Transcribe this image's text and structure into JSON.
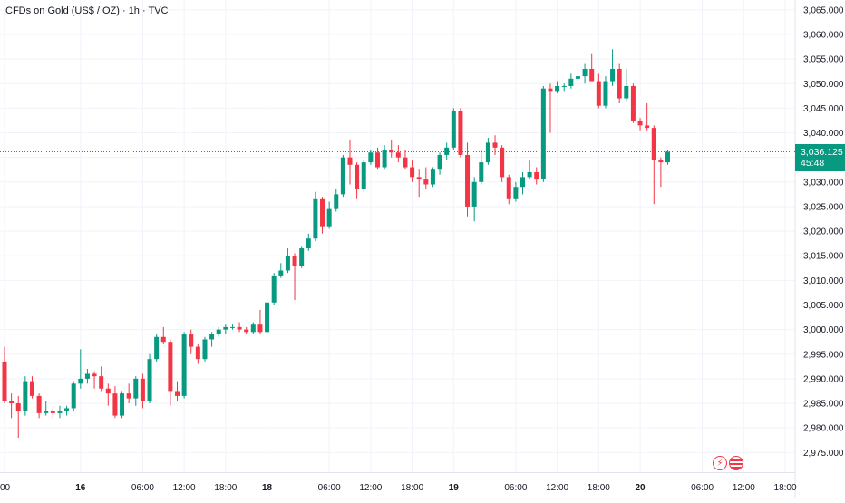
{
  "title": "CFDs on Gold (US$ / OZ) · 1h · TVC",
  "price_tag": {
    "price": "3,036.125",
    "countdown": "45:48"
  },
  "colors": {
    "up": "#089981",
    "down": "#f23645",
    "grid": "#f0f3fa",
    "axis_text": "#131722",
    "last_line": "#089981"
  },
  "events": {
    "bolt_icon": "lightning-icon",
    "flag_icon": "us-flag-icon"
  },
  "chart_data": {
    "type": "candlestick",
    "title": "CFDs on Gold (US$ / OZ) · 1h · TVC",
    "ylim": [
      2971,
      3067
    ],
    "y_axis_position": "right",
    "y_ticks": [
      "3,065.000",
      "3,060.000",
      "3,055.000",
      "3,050.000",
      "3,045.000",
      "3,040.000",
      "3,035.000",
      "3,030.000",
      "3,025.000",
      "3,020.000",
      "3,015.000",
      "3,010.000",
      "3,005.000",
      "3,000.000",
      "2,995.000",
      "2,990.000",
      "2,985.000",
      "2,980.000",
      "2,975.000"
    ],
    "y_tick_values": [
      3065,
      3060,
      3055,
      3050,
      3045,
      3040,
      3035,
      3030,
      3025,
      3020,
      3015,
      3010,
      3005,
      3000,
      2995,
      2990,
      2985,
      2980,
      2975
    ],
    "x_ticks": [
      {
        "label": "00",
        "index": 0,
        "bold": false
      },
      {
        "label": "16",
        "index": 11,
        "bold": true
      },
      {
        "label": "06:00",
        "index": 20,
        "bold": false
      },
      {
        "label": "12:00",
        "index": 26,
        "bold": false
      },
      {
        "label": "18:00",
        "index": 32,
        "bold": false
      },
      {
        "label": "18",
        "index": 38,
        "bold": true
      },
      {
        "label": "06:00",
        "index": 47,
        "bold": false
      },
      {
        "label": "12:00",
        "index": 53,
        "bold": false
      },
      {
        "label": "18:00",
        "index": 59,
        "bold": false
      },
      {
        "label": "19",
        "index": 65,
        "bold": true
      },
      {
        "label": "06:00",
        "index": 74,
        "bold": false
      },
      {
        "label": "12:00",
        "index": 80,
        "bold": false
      },
      {
        "label": "18:00",
        "index": 86,
        "bold": false
      },
      {
        "label": "20",
        "index": 92,
        "bold": true
      },
      {
        "label": "06:00",
        "index": 101,
        "bold": false
      },
      {
        "label": "12:00",
        "index": 107,
        "bold": false
      },
      {
        "label": "18:00",
        "index": 113,
        "bold": false
      }
    ],
    "last_price": 3036.125,
    "candles": [
      {
        "o": 2993.5,
        "h": 2996.5,
        "l": 2985.0,
        "c": 2985.5
      },
      {
        "o": 2985.5,
        "h": 2987.0,
        "l": 2982.0,
        "c": 2985.0
      },
      {
        "o": 2985.0,
        "h": 2986.5,
        "l": 2978.0,
        "c": 2983.5
      },
      {
        "o": 2983.5,
        "h": 2990.5,
        "l": 2982.5,
        "c": 2989.5
      },
      {
        "o": 2989.5,
        "h": 2990.5,
        "l": 2986.0,
        "c": 2986.5
      },
      {
        "o": 2986.5,
        "h": 2987.0,
        "l": 2982.0,
        "c": 2983.0
      },
      {
        "o": 2983.0,
        "h": 2985.5,
        "l": 2982.5,
        "c": 2983.5
      },
      {
        "o": 2983.5,
        "h": 2984.0,
        "l": 2982.0,
        "c": 2983.0
      },
      {
        "o": 2983.0,
        "h": 2984.5,
        "l": 2982.0,
        "c": 2983.5
      },
      {
        "o": 2983.5,
        "h": 2984.5,
        "l": 2982.5,
        "c": 2984.0
      },
      {
        "o": 2984.0,
        "h": 2989.5,
        "l": 2983.5,
        "c": 2989.0
      },
      {
        "o": 2989.0,
        "h": 2996.0,
        "l": 2988.0,
        "c": 2990.0
      },
      {
        "o": 2990.0,
        "h": 2992.0,
        "l": 2989.0,
        "c": 2991.0
      },
      {
        "o": 2991.0,
        "h": 2991.5,
        "l": 2988.0,
        "c": 2990.5
      },
      {
        "o": 2990.5,
        "h": 2992.5,
        "l": 2987.5,
        "c": 2988.0
      },
      {
        "o": 2988.0,
        "h": 2989.0,
        "l": 2984.5,
        "c": 2987.0
      },
      {
        "o": 2987.0,
        "h": 2988.5,
        "l": 2982.0,
        "c": 2982.5
      },
      {
        "o": 2982.5,
        "h": 2987.5,
        "l": 2982.0,
        "c": 2987.0
      },
      {
        "o": 2987.0,
        "h": 2989.0,
        "l": 2985.0,
        "c": 2986.0
      },
      {
        "o": 2986.0,
        "h": 2990.5,
        "l": 2984.5,
        "c": 2990.0
      },
      {
        "o": 2990.0,
        "h": 2991.0,
        "l": 2984.0,
        "c": 2985.5
      },
      {
        "o": 2985.5,
        "h": 2995.0,
        "l": 2985.0,
        "c": 2994.0
      },
      {
        "o": 2994.0,
        "h": 2999.0,
        "l": 2993.5,
        "c": 2998.5
      },
      {
        "o": 2998.5,
        "h": 3000.5,
        "l": 2997.0,
        "c": 2997.5
      },
      {
        "o": 2997.5,
        "h": 2998.0,
        "l": 2984.5,
        "c": 2987.5
      },
      {
        "o": 2987.5,
        "h": 2989.5,
        "l": 2985.5,
        "c": 2986.5
      },
      {
        "o": 2986.5,
        "h": 2999.5,
        "l": 2986.0,
        "c": 2999.0
      },
      {
        "o": 2999.0,
        "h": 3000.0,
        "l": 2995.0,
        "c": 2996.5
      },
      {
        "o": 2996.5,
        "h": 2997.0,
        "l": 2993.0,
        "c": 2994.0
      },
      {
        "o": 2994.0,
        "h": 2998.5,
        "l": 2993.5,
        "c": 2998.0
      },
      {
        "o": 2998.0,
        "h": 2999.5,
        "l": 2996.5,
        "c": 2999.0
      },
      {
        "o": 2999.0,
        "h": 3000.5,
        "l": 2998.5,
        "c": 3000.0
      },
      {
        "o": 3000.0,
        "h": 3001.0,
        "l": 2999.0,
        "c": 3000.5
      },
      {
        "o": 3000.5,
        "h": 3001.0,
        "l": 3000.0,
        "c": 3000.5
      },
      {
        "o": 3000.5,
        "h": 3001.5,
        "l": 2999.5,
        "c": 3000.0
      },
      {
        "o": 3000.0,
        "h": 3000.5,
        "l": 2999.0,
        "c": 2999.5
      },
      {
        "o": 2999.5,
        "h": 3001.5,
        "l": 2999.0,
        "c": 3001.0
      },
      {
        "o": 3001.0,
        "h": 3004.0,
        "l": 2999.0,
        "c": 2999.5
      },
      {
        "o": 2999.5,
        "h": 3006.0,
        "l": 2999.0,
        "c": 3005.5
      },
      {
        "o": 3005.5,
        "h": 3011.5,
        "l": 3005.0,
        "c": 3011.0
      },
      {
        "o": 3011.0,
        "h": 3013.5,
        "l": 3010.5,
        "c": 3012.0
      },
      {
        "o": 3012.0,
        "h": 3016.5,
        "l": 3011.5,
        "c": 3015.0
      },
      {
        "o": 3015.0,
        "h": 3015.5,
        "l": 3006.0,
        "c": 3013.0
      },
      {
        "o": 3013.0,
        "h": 3017.0,
        "l": 3012.5,
        "c": 3016.5
      },
      {
        "o": 3016.5,
        "h": 3019.5,
        "l": 3016.0,
        "c": 3018.5
      },
      {
        "o": 3018.5,
        "h": 3028.0,
        "l": 3018.0,
        "c": 3026.5
      },
      {
        "o": 3026.5,
        "h": 3027.0,
        "l": 3019.5,
        "c": 3021.0
      },
      {
        "o": 3021.0,
        "h": 3026.0,
        "l": 3020.5,
        "c": 3024.5
      },
      {
        "o": 3024.5,
        "h": 3028.5,
        "l": 3024.0,
        "c": 3027.5
      },
      {
        "o": 3027.5,
        "h": 3035.5,
        "l": 3027.0,
        "c": 3035.0
      },
      {
        "o": 3035.0,
        "h": 3038.5,
        "l": 3029.5,
        "c": 3033.5
      },
      {
        "o": 3033.5,
        "h": 3034.0,
        "l": 3026.5,
        "c": 3028.5
      },
      {
        "o": 3028.5,
        "h": 3034.5,
        "l": 3028.0,
        "c": 3034.0
      },
      {
        "o": 3034.0,
        "h": 3036.5,
        "l": 3033.5,
        "c": 3036.0
      },
      {
        "o": 3036.0,
        "h": 3037.0,
        "l": 3032.5,
        "c": 3033.0
      },
      {
        "o": 3033.0,
        "h": 3037.5,
        "l": 3032.5,
        "c": 3036.5
      },
      {
        "o": 3036.5,
        "h": 3038.5,
        "l": 3035.0,
        "c": 3036.0
      },
      {
        "o": 3036.0,
        "h": 3037.5,
        "l": 3034.0,
        "c": 3035.0
      },
      {
        "o": 3035.0,
        "h": 3036.5,
        "l": 3032.5,
        "c": 3033.0
      },
      {
        "o": 3033.0,
        "h": 3034.5,
        "l": 3030.0,
        "c": 3031.0
      },
      {
        "o": 3031.0,
        "h": 3032.5,
        "l": 3027.0,
        "c": 3030.5
      },
      {
        "o": 3030.5,
        "h": 3033.0,
        "l": 3028.5,
        "c": 3029.5
      },
      {
        "o": 3029.5,
        "h": 3033.0,
        "l": 3029.0,
        "c": 3032.5
      },
      {
        "o": 3032.5,
        "h": 3036.0,
        "l": 3031.5,
        "c": 3035.5
      },
      {
        "o": 3035.5,
        "h": 3038.0,
        "l": 3034.5,
        "c": 3037.0
      },
      {
        "o": 3037.0,
        "h": 3045.0,
        "l": 3036.5,
        "c": 3044.5
      },
      {
        "o": 3044.5,
        "h": 3045.0,
        "l": 3035.0,
        "c": 3035.5
      },
      {
        "o": 3035.5,
        "h": 3038.0,
        "l": 3023.0,
        "c": 3025.0
      },
      {
        "o": 3025.0,
        "h": 3031.0,
        "l": 3022.0,
        "c": 3030.0
      },
      {
        "o": 3030.0,
        "h": 3036.5,
        "l": 3029.5,
        "c": 3034.0
      },
      {
        "o": 3034.0,
        "h": 3039.0,
        "l": 3033.5,
        "c": 3038.0
      },
      {
        "o": 3038.0,
        "h": 3039.5,
        "l": 3035.5,
        "c": 3037.0
      },
      {
        "o": 3037.0,
        "h": 3037.5,
        "l": 3030.0,
        "c": 3031.0
      },
      {
        "o": 3031.0,
        "h": 3031.5,
        "l": 3025.5,
        "c": 3026.5
      },
      {
        "o": 3026.5,
        "h": 3030.0,
        "l": 3026.0,
        "c": 3029.0
      },
      {
        "o": 3029.0,
        "h": 3032.0,
        "l": 3027.5,
        "c": 3031.0
      },
      {
        "o": 3031.0,
        "h": 3034.5,
        "l": 3030.5,
        "c": 3032.0
      },
      {
        "o": 3032.0,
        "h": 3033.0,
        "l": 3029.5,
        "c": 3030.5
      },
      {
        "o": 3030.5,
        "h": 3049.5,
        "l": 3030.0,
        "c": 3049.0
      },
      {
        "o": 3049.0,
        "h": 3050.0,
        "l": 3040.0,
        "c": 3048.5
      },
      {
        "o": 3048.5,
        "h": 3050.5,
        "l": 3048.0,
        "c": 3049.5
      },
      {
        "o": 3049.5,
        "h": 3050.0,
        "l": 3048.5,
        "c": 3049.5
      },
      {
        "o": 3049.5,
        "h": 3052.0,
        "l": 3049.0,
        "c": 3051.0
      },
      {
        "o": 3051.0,
        "h": 3053.5,
        "l": 3049.5,
        "c": 3051.5
      },
      {
        "o": 3051.5,
        "h": 3054.0,
        "l": 3050.0,
        "c": 3053.0
      },
      {
        "o": 3053.0,
        "h": 3056.0,
        "l": 3050.5,
        "c": 3050.5
      },
      {
        "o": 3050.5,
        "h": 3052.0,
        "l": 3045.0,
        "c": 3045.5
      },
      {
        "o": 3045.5,
        "h": 3051.5,
        "l": 3045.0,
        "c": 3050.5
      },
      {
        "o": 3050.5,
        "h": 3057.0,
        "l": 3049.5,
        "c": 3053.0
      },
      {
        "o": 3053.0,
        "h": 3054.0,
        "l": 3046.0,
        "c": 3047.0
      },
      {
        "o": 3047.0,
        "h": 3053.0,
        "l": 3046.5,
        "c": 3049.5
      },
      {
        "o": 3049.5,
        "h": 3050.0,
        "l": 3042.0,
        "c": 3042.5
      },
      {
        "o": 3042.5,
        "h": 3043.0,
        "l": 3040.5,
        "c": 3041.5
      },
      {
        "o": 3041.5,
        "h": 3046.0,
        "l": 3040.5,
        "c": 3041.0
      },
      {
        "o": 3041.0,
        "h": 3041.5,
        "l": 3025.5,
        "c": 3034.5
      },
      {
        "o": 3034.5,
        "h": 3035.0,
        "l": 3029.0,
        "c": 3034.0
      },
      {
        "o": 3034.0,
        "h": 3036.5,
        "l": 3033.5,
        "c": 3036.125
      }
    ]
  }
}
